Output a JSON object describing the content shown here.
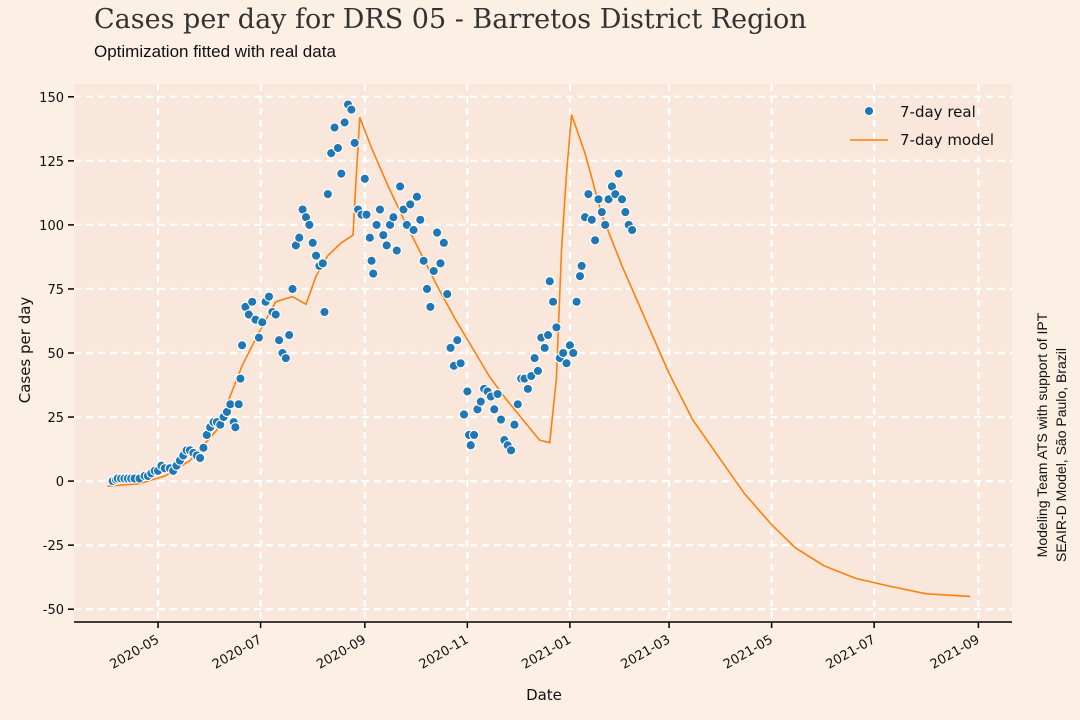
{
  "title": "Cases per day for DRS 05 - Barretos District Region",
  "subtitle": "Optimization fitted with real data",
  "credit_line1": "Modeling Team ATS with support of IPT",
  "credit_line2": "SEAIR-D Model, São Paulo, Brazil",
  "colors": {
    "background": "#fcefe4",
    "plot_area": "#fae7dc",
    "grid": "#ffffff",
    "real": "#1f77b4",
    "model": "#ff7f0e"
  },
  "chart_data": {
    "type": "line",
    "title": "Cases per day for DRS 05 - Barretos District Region",
    "subtitle": "Optimization fitted with real data",
    "xlabel": "Date",
    "ylabel": "Cases per day",
    "grid": true,
    "legend_position": "top-right",
    "xlim": [
      "2020-03-12",
      "2021-09-21"
    ],
    "ylim": [
      -55,
      155
    ],
    "x_ticks": [
      "2020-05-01",
      "2020-07-01",
      "2020-09-01",
      "2020-11-01",
      "2021-01-01",
      "2021-03-01",
      "2021-05-01",
      "2021-07-01",
      "2021-09-01"
    ],
    "x_tick_labels": [
      "2020-05",
      "2020-07",
      "2020-09",
      "2020-11",
      "2021-01",
      "2021-03",
      "2021-05",
      "2021-07",
      "2021-09"
    ],
    "y_ticks": [
      -50,
      -25,
      0,
      25,
      50,
      75,
      100,
      125,
      150
    ],
    "y_tick_labels": [
      "-50",
      "-25",
      "0",
      "25",
      "50",
      "75",
      "100",
      "125",
      "150"
    ],
    "series": [
      {
        "name": "7-day real",
        "kind": "scatter",
        "points": [
          [
            "2020-04-04",
            0
          ],
          [
            "2020-04-06",
            0.5
          ],
          [
            "2020-04-07",
            1
          ],
          [
            "2020-04-09",
            1
          ],
          [
            "2020-04-11",
            1
          ],
          [
            "2020-04-13",
            1
          ],
          [
            "2020-04-15",
            1
          ],
          [
            "2020-04-17",
            1
          ],
          [
            "2020-04-20",
            1
          ],
          [
            "2020-04-23",
            2
          ],
          [
            "2020-04-25",
            2
          ],
          [
            "2020-04-27",
            3
          ],
          [
            "2020-04-29",
            4
          ],
          [
            "2020-05-01",
            4
          ],
          [
            "2020-05-03",
            6
          ],
          [
            "2020-05-05",
            5
          ],
          [
            "2020-05-08",
            5
          ],
          [
            "2020-05-10",
            4
          ],
          [
            "2020-05-12",
            6
          ],
          [
            "2020-05-14",
            8
          ],
          [
            "2020-05-16",
            10
          ],
          [
            "2020-05-18",
            12
          ],
          [
            "2020-05-20",
            12
          ],
          [
            "2020-05-22",
            11
          ],
          [
            "2020-05-24",
            10
          ],
          [
            "2020-05-26",
            9
          ],
          [
            "2020-05-28",
            13
          ],
          [
            "2020-05-30",
            18
          ],
          [
            "2020-06-01",
            21
          ],
          [
            "2020-06-03",
            23
          ],
          [
            "2020-06-05",
            23
          ],
          [
            "2020-06-07",
            22
          ],
          [
            "2020-06-09",
            25
          ],
          [
            "2020-06-11",
            27
          ],
          [
            "2020-06-13",
            30
          ],
          [
            "2020-06-15",
            23
          ],
          [
            "2020-06-16",
            21
          ],
          [
            "2020-06-18",
            30
          ],
          [
            "2020-06-19",
            40
          ],
          [
            "2020-06-20",
            53
          ],
          [
            "2020-06-22",
            68
          ],
          [
            "2020-06-24",
            65
          ],
          [
            "2020-06-26",
            70
          ],
          [
            "2020-06-28",
            63
          ],
          [
            "2020-06-30",
            56
          ],
          [
            "2020-07-02",
            62
          ],
          [
            "2020-07-04",
            70
          ],
          [
            "2020-07-06",
            72
          ],
          [
            "2020-07-08",
            66
          ],
          [
            "2020-07-10",
            65
          ],
          [
            "2020-07-12",
            55
          ],
          [
            "2020-07-14",
            50
          ],
          [
            "2020-07-16",
            48
          ],
          [
            "2020-07-18",
            57
          ],
          [
            "2020-07-20",
            75
          ],
          [
            "2020-07-22",
            92
          ],
          [
            "2020-07-24",
            95
          ],
          [
            "2020-07-26",
            106
          ],
          [
            "2020-07-28",
            103
          ],
          [
            "2020-07-30",
            100
          ],
          [
            "2020-08-01",
            93
          ],
          [
            "2020-08-03",
            88
          ],
          [
            "2020-08-05",
            84
          ],
          [
            "2020-08-07",
            85
          ],
          [
            "2020-08-08",
            66
          ],
          [
            "2020-08-10",
            112
          ],
          [
            "2020-08-12",
            128
          ],
          [
            "2020-08-14",
            138
          ],
          [
            "2020-08-16",
            130
          ],
          [
            "2020-08-18",
            120
          ],
          [
            "2020-08-20",
            140
          ],
          [
            "2020-08-22",
            147
          ],
          [
            "2020-08-24",
            145
          ],
          [
            "2020-08-26",
            132
          ],
          [
            "2020-08-28",
            106
          ],
          [
            "2020-08-30",
            104
          ],
          [
            "2020-09-01",
            118
          ],
          [
            "2020-09-02",
            104
          ],
          [
            "2020-09-04",
            95
          ],
          [
            "2020-09-05",
            86
          ],
          [
            "2020-09-06",
            81
          ],
          [
            "2020-09-08",
            100
          ],
          [
            "2020-09-10",
            106
          ],
          [
            "2020-09-12",
            96
          ],
          [
            "2020-09-14",
            92
          ],
          [
            "2020-09-16",
            100
          ],
          [
            "2020-09-18",
            103
          ],
          [
            "2020-09-20",
            90
          ],
          [
            "2020-09-22",
            115
          ],
          [
            "2020-09-24",
            106
          ],
          [
            "2020-09-26",
            100
          ],
          [
            "2020-09-28",
            108
          ],
          [
            "2020-09-30",
            98
          ],
          [
            "2020-10-02",
            111
          ],
          [
            "2020-10-04",
            102
          ],
          [
            "2020-10-06",
            86
          ],
          [
            "2020-10-08",
            75
          ],
          [
            "2020-10-10",
            68
          ],
          [
            "2020-10-12",
            82
          ],
          [
            "2020-10-14",
            97
          ],
          [
            "2020-10-16",
            85
          ],
          [
            "2020-10-18",
            93
          ],
          [
            "2020-10-20",
            73
          ],
          [
            "2020-10-22",
            52
          ],
          [
            "2020-10-24",
            45
          ],
          [
            "2020-10-26",
            55
          ],
          [
            "2020-10-28",
            46
          ],
          [
            "2020-10-30",
            26
          ],
          [
            "2020-11-01",
            35
          ],
          [
            "2020-11-02",
            18
          ],
          [
            "2020-11-03",
            14
          ],
          [
            "2020-11-05",
            18
          ],
          [
            "2020-11-07",
            28
          ],
          [
            "2020-11-09",
            31
          ],
          [
            "2020-11-11",
            36
          ],
          [
            "2020-11-13",
            35
          ],
          [
            "2020-11-15",
            33
          ],
          [
            "2020-11-17",
            28
          ],
          [
            "2020-11-19",
            34
          ],
          [
            "2020-11-21",
            24
          ],
          [
            "2020-11-23",
            16
          ],
          [
            "2020-11-25",
            14
          ],
          [
            "2020-11-27",
            12
          ],
          [
            "2020-11-29",
            22
          ],
          [
            "2020-12-01",
            30
          ],
          [
            "2020-12-03",
            40
          ],
          [
            "2020-12-05",
            40
          ],
          [
            "2020-12-07",
            36
          ],
          [
            "2020-12-09",
            41
          ],
          [
            "2020-12-11",
            48
          ],
          [
            "2020-12-13",
            43
          ],
          [
            "2020-12-15",
            56
          ],
          [
            "2020-12-17",
            52
          ],
          [
            "2020-12-19",
            57
          ],
          [
            "2020-12-20",
            78
          ],
          [
            "2020-12-22",
            70
          ],
          [
            "2020-12-24",
            60
          ],
          [
            "2020-12-26",
            48
          ],
          [
            "2020-12-28",
            50
          ],
          [
            "2020-12-30",
            46
          ],
          [
            "2021-01-01",
            53
          ],
          [
            "2021-01-03",
            50
          ],
          [
            "2021-01-05",
            70
          ],
          [
            "2021-01-07",
            80
          ],
          [
            "2021-01-08",
            84
          ],
          [
            "2021-01-10",
            103
          ],
          [
            "2021-01-12",
            112
          ],
          [
            "2021-01-14",
            102
          ],
          [
            "2021-01-16",
            94
          ],
          [
            "2021-01-18",
            110
          ],
          [
            "2021-01-20",
            105
          ],
          [
            "2021-01-22",
            100
          ],
          [
            "2021-01-24",
            110
          ],
          [
            "2021-01-26",
            115
          ],
          [
            "2021-01-28",
            112
          ],
          [
            "2021-01-30",
            120
          ],
          [
            "2021-02-01",
            110
          ],
          [
            "2021-02-03",
            105
          ],
          [
            "2021-02-05",
            100
          ],
          [
            "2021-02-07",
            98
          ]
        ]
      },
      {
        "name": "7-day model",
        "kind": "line",
        "points": [
          [
            "2020-04-01",
            -2
          ],
          [
            "2020-04-20",
            -1
          ],
          [
            "2020-05-05",
            2
          ],
          [
            "2020-05-20",
            8
          ],
          [
            "2020-06-05",
            20
          ],
          [
            "2020-06-20",
            45
          ],
          [
            "2020-06-30",
            58
          ],
          [
            "2020-07-10",
            70
          ],
          [
            "2020-07-20",
            72
          ],
          [
            "2020-07-28",
            69
          ],
          [
            "2020-08-03",
            80
          ],
          [
            "2020-08-10",
            88
          ],
          [
            "2020-08-18",
            93
          ],
          [
            "2020-08-25",
            96
          ],
          [
            "2020-08-27",
            120
          ],
          [
            "2020-08-29",
            142
          ],
          [
            "2020-09-05",
            130
          ],
          [
            "2020-09-15",
            115
          ],
          [
            "2020-09-25",
            101
          ],
          [
            "2020-10-05",
            88
          ],
          [
            "2020-10-15",
            75
          ],
          [
            "2020-10-25",
            63
          ],
          [
            "2020-11-04",
            52
          ],
          [
            "2020-11-14",
            41
          ],
          [
            "2020-11-24",
            32
          ],
          [
            "2020-12-04",
            24
          ],
          [
            "2020-12-14",
            16
          ],
          [
            "2020-12-20",
            15
          ],
          [
            "2020-12-24",
            40
          ],
          [
            "2020-12-27",
            90
          ],
          [
            "2020-12-30",
            120
          ],
          [
            "2021-01-02",
            143
          ],
          [
            "2021-01-10",
            128
          ],
          [
            "2021-01-20",
            104
          ],
          [
            "2021-02-01",
            84
          ],
          [
            "2021-02-15",
            63
          ],
          [
            "2021-03-01",
            42
          ],
          [
            "2021-03-15",
            24
          ],
          [
            "2021-04-01",
            8
          ],
          [
            "2021-04-15",
            -5
          ],
          [
            "2021-05-01",
            -17
          ],
          [
            "2021-05-15",
            -26
          ],
          [
            "2021-06-01",
            -33
          ],
          [
            "2021-06-20",
            -38
          ],
          [
            "2021-07-10",
            -41
          ],
          [
            "2021-08-01",
            -44
          ],
          [
            "2021-08-27",
            -45
          ]
        ]
      }
    ]
  }
}
